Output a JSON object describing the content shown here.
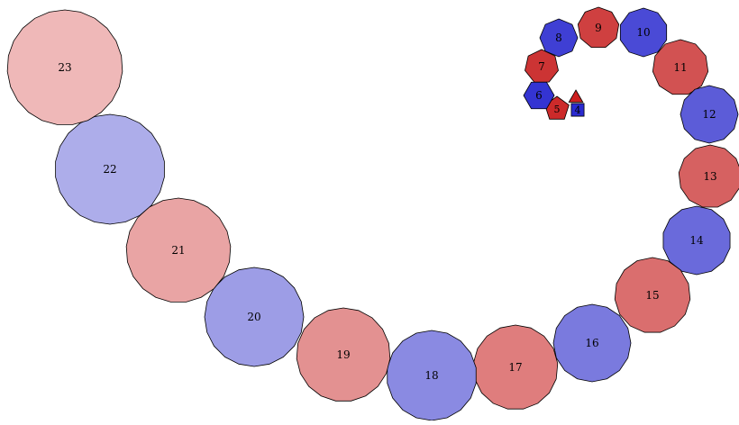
{
  "diagram": {
    "description_colors": {
      "red_base": "#cc2222",
      "blue_base": "#2222cc",
      "stroke": "#000000"
    },
    "polygons": [
      {
        "n": 3,
        "label": "",
        "color": "#cc1f1f"
      },
      {
        "n": 4,
        "label": "4",
        "color": "#2a2ad0"
      },
      {
        "n": 5,
        "label": "5",
        "color": "#cc2a2a"
      },
      {
        "n": 6,
        "label": "6",
        "color": "#3434d2"
      },
      {
        "n": 7,
        "label": "7",
        "color": "#cc3434"
      },
      {
        "n": 8,
        "label": "8",
        "color": "#3f3fd4"
      },
      {
        "n": 9,
        "label": "9",
        "color": "#cf4040"
      },
      {
        "n": 10,
        "label": "10",
        "color": "#4a4ad6"
      },
      {
        "n": 11,
        "label": "11",
        "color": "#d25252"
      },
      {
        "n": 12,
        "label": "12",
        "color": "#5c5cd8"
      },
      {
        "n": 13,
        "label": "13",
        "color": "#d66161"
      },
      {
        "n": 14,
        "label": "14",
        "color": "#6a6adb"
      },
      {
        "n": 15,
        "label": "15",
        "color": "#da6e6e"
      },
      {
        "n": 16,
        "label": "16",
        "color": "#7a7ade"
      },
      {
        "n": 17,
        "label": "17",
        "color": "#df7d7d"
      },
      {
        "n": 18,
        "label": "18",
        "color": "#8a8ae2"
      },
      {
        "n": 19,
        "label": "19",
        "color": "#e39191"
      },
      {
        "n": 20,
        "label": "20",
        "color": "#9d9de6"
      },
      {
        "n": 21,
        "label": "21",
        "color": "#e9a4a4"
      },
      {
        "n": 22,
        "label": "22",
        "color": "#adadea"
      },
      {
        "n": 23,
        "label": "23",
        "color": "#efb8b8"
      }
    ]
  }
}
